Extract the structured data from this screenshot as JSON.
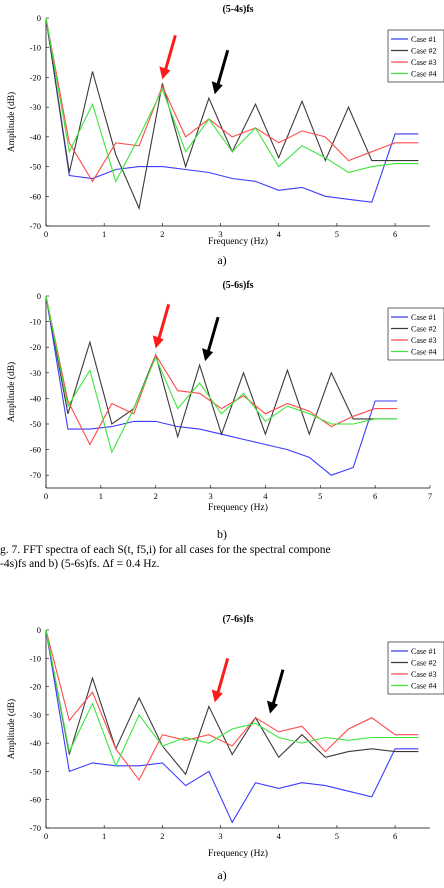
{
  "caption": {
    "line1": "g. 7.  FFT spectra of each S(t, f5,i) for all cases for the spectral compone",
    "line2": "-4s)fs and b) (5-6s)fs. Δf  =  0.4 Hz."
  },
  "sub_labels": [
    "a)",
    "b)",
    "a)"
  ],
  "colors": {
    "case1": "#3b3bff",
    "case2": "#3a3a3a",
    "case3": "#ff4a4a",
    "case4": "#3ce63c",
    "red_arrow": "#ff1a1a",
    "black_arrow": "#000000"
  },
  "chart_data": [
    {
      "type": "line",
      "title": "(5-4s)fs",
      "xlabel": "Frequency (Hz)",
      "ylabel": "Amplitude (dB)",
      "xlim": [
        0,
        6.6
      ],
      "ylim": [
        -70,
        0
      ],
      "xticks": [
        "0",
        "1",
        "2",
        "3",
        "4",
        "5",
        "6"
      ],
      "yticks": [
        "0",
        "-10",
        "-20",
        "-30",
        "-40",
        "-50",
        "-60",
        "-70"
      ],
      "legend": "top-right",
      "x": [
        0,
        0.4,
        0.8,
        1.2,
        1.6,
        2.0,
        2.4,
        2.8,
        3.2,
        3.6,
        4.0,
        4.4,
        4.8,
        5.2,
        5.6,
        6.0,
        6.4
      ],
      "series": [
        {
          "name": "Case #1",
          "values": [
            0,
            -53,
            -54,
            -51,
            -50,
            -50,
            -51,
            -52,
            -54,
            -55,
            -58,
            -57,
            -60,
            -61,
            -62,
            -39,
            -39
          ]
        },
        {
          "name": "Case #2",
          "values": [
            0,
            -52,
            -18,
            -46,
            -64,
            -22,
            -50,
            -27,
            -45,
            -29,
            -47,
            -28,
            -48,
            -30,
            -48,
            -48,
            -48
          ]
        },
        {
          "name": "Case #3",
          "values": [
            0,
            -42,
            -55,
            -42,
            -43,
            -23,
            -40,
            -34,
            -40,
            -37,
            -42,
            -38,
            -40,
            -48,
            -45,
            -42,
            -42
          ]
        },
        {
          "name": "Case #4",
          "values": [
            0,
            -45,
            -29,
            -55,
            -40,
            -24,
            -45,
            -34,
            -45,
            -37,
            -50,
            -43,
            -47,
            -52,
            -50,
            -49,
            -49
          ]
        }
      ],
      "annotations": [
        {
          "color": "red",
          "at_x": 2.0,
          "at_y": -22
        },
        {
          "color": "black",
          "at_x": 2.9,
          "at_y": -27
        }
      ]
    },
    {
      "type": "line",
      "title": "(5-6s)fs",
      "xlabel": "Frequency (Hz)",
      "ylabel": "Amplitude (dB)",
      "xlim": [
        0,
        7
      ],
      "ylim": [
        -75,
        0
      ],
      "xticks": [
        "0",
        "1",
        "2",
        "3",
        "4",
        "5",
        "6",
        "7"
      ],
      "yticks": [
        "0",
        "-10",
        "-20",
        "-30",
        "-40",
        "-50",
        "-60",
        "-70"
      ],
      "legend": "top-right",
      "x": [
        0,
        0.4,
        0.8,
        1.2,
        1.6,
        2.0,
        2.4,
        2.8,
        3.2,
        3.6,
        4.0,
        4.4,
        4.8,
        5.2,
        5.6,
        6.0,
        6.4
      ],
      "series": [
        {
          "name": "Case #1",
          "values": [
            0,
            -52,
            -52,
            -51,
            -49,
            -49,
            -51,
            -52,
            -54,
            -56,
            -58,
            -60,
            -63,
            -70,
            -67,
            -41,
            -41
          ]
        },
        {
          "name": "Case #2",
          "values": [
            0,
            -46,
            -18,
            -50,
            -44,
            -23,
            -55,
            -27,
            -54,
            -30,
            -54,
            -29,
            -54,
            -30,
            -48,
            -48,
            -48
          ]
        },
        {
          "name": "Case #3",
          "values": [
            0,
            -41,
            -58,
            -42,
            -46,
            -23,
            -37,
            -38,
            -44,
            -39,
            -46,
            -42,
            -45,
            -51,
            -47,
            -44,
            -44
          ]
        },
        {
          "name": "Case #4",
          "values": [
            0,
            -43,
            -29,
            -61,
            -44,
            -24,
            -44,
            -34,
            -46,
            -38,
            -49,
            -43,
            -46,
            -50,
            -50,
            -48,
            -48
          ]
        }
      ],
      "annotations": [
        {
          "color": "red",
          "at_x": 2.0,
          "at_y": -22
        },
        {
          "color": "black",
          "at_x": 2.9,
          "at_y": -27
        }
      ]
    },
    {
      "type": "line",
      "title": "(7-6s)fs",
      "xlabel": "Frequency (Hz)",
      "ylabel": "Amplitude (dB)",
      "xlim": [
        0,
        6.6
      ],
      "ylim": [
        -70,
        0
      ],
      "xticks": [
        "0",
        "1",
        "2",
        "3",
        "4",
        "5",
        "6"
      ],
      "yticks": [
        "0",
        "-10",
        "-20",
        "-30",
        "-40",
        "-50",
        "-60",
        "-70"
      ],
      "legend": "top-right",
      "x": [
        0,
        0.4,
        0.8,
        1.2,
        1.6,
        2.0,
        2.4,
        2.8,
        3.2,
        3.6,
        4.0,
        4.4,
        4.8,
        5.2,
        5.6,
        6.0,
        6.4
      ],
      "series": [
        {
          "name": "Case #1",
          "values": [
            0,
            -50,
            -47,
            -48,
            -48,
            -47,
            -55,
            -50,
            -68,
            -54,
            -56,
            -54,
            -55,
            -57,
            -59,
            -42,
            -42
          ]
        },
        {
          "name": "Case #2",
          "values": [
            0,
            -44,
            -17,
            -42,
            -24,
            -41,
            -51,
            -27,
            -44,
            -31,
            -45,
            -37,
            -45,
            -43,
            -42,
            -43,
            -43
          ]
        },
        {
          "name": "Case #3",
          "values": [
            0,
            -32,
            -22,
            -42,
            -53,
            -37,
            -39,
            -37,
            -41,
            -31,
            -36,
            -34,
            -43,
            -35,
            -31,
            -37,
            -37
          ]
        },
        {
          "name": "Case #4",
          "values": [
            0,
            -43,
            -26,
            -48,
            -30,
            -41,
            -38,
            -40,
            -35,
            -33,
            -38,
            -40,
            -38,
            -39,
            -38,
            -38,
            -38
          ]
        }
      ],
      "annotations": [
        {
          "color": "red",
          "at_x": 2.9,
          "at_y": -27
        },
        {
          "color": "black",
          "at_x": 3.85,
          "at_y": -31
        }
      ]
    }
  ]
}
